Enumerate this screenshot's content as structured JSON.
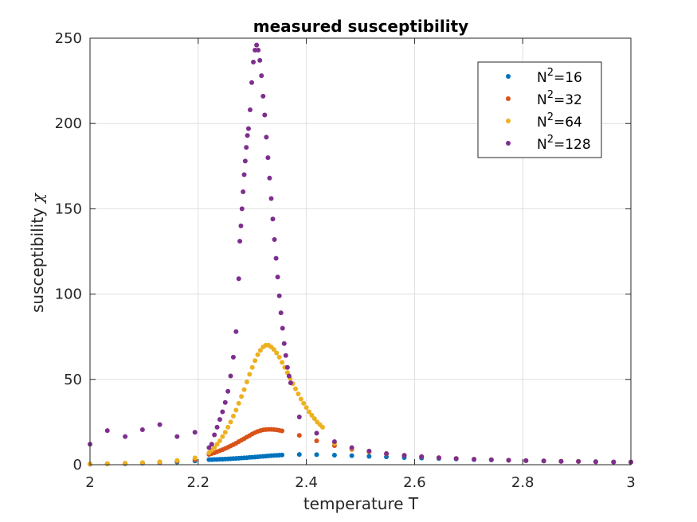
{
  "chart_data": {
    "type": "scatter",
    "title": "measured susceptibility",
    "xlabel": "temperature T",
    "ylabel": "susceptibility",
    "ylabel_symbol": "χ",
    "xlim": [
      2,
      3
    ],
    "ylim": [
      0,
      250
    ],
    "xticks": [
      2,
      2.2,
      2.4,
      2.6,
      2.8,
      3
    ],
    "xtick_labels": [
      "2",
      "2.2",
      "2.4",
      "2.6",
      "2.8",
      "3"
    ],
    "yticks": [
      0,
      50,
      100,
      150,
      200,
      250
    ],
    "ytick_labels": [
      "0",
      "50",
      "100",
      "150",
      "200",
      "250"
    ],
    "grid": true,
    "legend_position": "top-right",
    "series": [
      {
        "name": "N",
        "name_sup": "2",
        "name_suffix": "=16",
        "color": "#0072BD",
        "points": [
          [
            2.0,
            0.3
          ],
          [
            2.032,
            0.5
          ],
          [
            2.065,
            0.6
          ],
          [
            2.097,
            0.9
          ],
          [
            2.129,
            1.2
          ],
          [
            2.161,
            1.6
          ],
          [
            2.194,
            2.2
          ],
          [
            2.22,
            3.0
          ],
          [
            2.225,
            3.0
          ],
          [
            2.23,
            3.1
          ],
          [
            2.235,
            3.1
          ],
          [
            2.24,
            3.2
          ],
          [
            2.245,
            3.2
          ],
          [
            2.25,
            3.3
          ],
          [
            2.255,
            3.4
          ],
          [
            2.26,
            3.5
          ],
          [
            2.265,
            3.6
          ],
          [
            2.27,
            3.7
          ],
          [
            2.275,
            3.8
          ],
          [
            2.28,
            3.9
          ],
          [
            2.285,
            4.0
          ],
          [
            2.29,
            4.1
          ],
          [
            2.295,
            4.3
          ],
          [
            2.3,
            4.4
          ],
          [
            2.305,
            4.5
          ],
          [
            2.31,
            4.6
          ],
          [
            2.315,
            4.8
          ],
          [
            2.32,
            4.9
          ],
          [
            2.325,
            5.0
          ],
          [
            2.33,
            5.2
          ],
          [
            2.335,
            5.3
          ],
          [
            2.34,
            5.4
          ],
          [
            2.345,
            5.5
          ],
          [
            2.35,
            5.6
          ],
          [
            2.355,
            5.7
          ],
          [
            2.387,
            6.0
          ],
          [
            2.419,
            5.9
          ],
          [
            2.452,
            5.6
          ],
          [
            2.484,
            5.3
          ],
          [
            2.516,
            4.9
          ],
          [
            2.548,
            4.6
          ],
          [
            2.581,
            4.2
          ],
          [
            2.613,
            3.9
          ],
          [
            2.645,
            3.6
          ],
          [
            2.677,
            3.3
          ],
          [
            2.71,
            3.0
          ],
          [
            2.742,
            2.8
          ],
          [
            2.774,
            2.6
          ],
          [
            2.806,
            2.4
          ],
          [
            2.839,
            2.2
          ],
          [
            2.871,
            2.0
          ],
          [
            2.903,
            1.9
          ],
          [
            2.935,
            1.8
          ],
          [
            2.968,
            1.6
          ],
          [
            3.0,
            1.5
          ]
        ]
      },
      {
        "name": "N",
        "name_sup": "2",
        "name_suffix": "=32",
        "color": "#D95319",
        "points": [
          [
            2.0,
            0.4
          ],
          [
            2.032,
            0.6
          ],
          [
            2.065,
            0.8
          ],
          [
            2.097,
            1.1
          ],
          [
            2.129,
            1.5
          ],
          [
            2.161,
            2.1
          ],
          [
            2.194,
            3.0
          ],
          [
            2.22,
            6.0
          ],
          [
            2.225,
            6.5
          ],
          [
            2.23,
            7.0
          ],
          [
            2.235,
            7.6
          ],
          [
            2.24,
            8.2
          ],
          [
            2.245,
            8.8
          ],
          [
            2.25,
            9.5
          ],
          [
            2.255,
            10.2
          ],
          [
            2.26,
            11.0
          ],
          [
            2.265,
            11.8
          ],
          [
            2.27,
            12.6
          ],
          [
            2.275,
            13.5
          ],
          [
            2.28,
            14.4
          ],
          [
            2.285,
            15.3
          ],
          [
            2.29,
            16.2
          ],
          [
            2.295,
            17.1
          ],
          [
            2.3,
            18.0
          ],
          [
            2.305,
            18.8
          ],
          [
            2.31,
            19.5
          ],
          [
            2.315,
            20.0
          ],
          [
            2.32,
            20.4
          ],
          [
            2.325,
            20.6
          ],
          [
            2.33,
            20.7
          ],
          [
            2.335,
            20.7
          ],
          [
            2.34,
            20.6
          ],
          [
            2.345,
            20.4
          ],
          [
            2.35,
            20.1
          ],
          [
            2.355,
            19.8
          ],
          [
            2.387,
            17.2
          ],
          [
            2.419,
            14.0
          ],
          [
            2.452,
            11.2
          ],
          [
            2.484,
            9.0
          ],
          [
            2.516,
            7.5
          ],
          [
            2.548,
            6.3
          ],
          [
            2.581,
            5.4
          ],
          [
            2.613,
            4.7
          ],
          [
            2.645,
            4.1
          ],
          [
            2.677,
            3.6
          ],
          [
            2.71,
            3.2
          ],
          [
            2.742,
            2.9
          ],
          [
            2.774,
            2.6
          ],
          [
            2.806,
            2.4
          ],
          [
            2.839,
            2.2
          ],
          [
            2.871,
            2.0
          ],
          [
            2.903,
            1.9
          ],
          [
            2.935,
            1.7
          ],
          [
            2.968,
            1.6
          ],
          [
            3.0,
            1.5
          ]
        ]
      },
      {
        "name": "N",
        "name_sup": "2",
        "name_suffix": "=64",
        "color": "#EDB120",
        "points": [
          [
            2.0,
            0.4
          ],
          [
            2.032,
            0.6
          ],
          [
            2.065,
            0.9
          ],
          [
            2.097,
            1.2
          ],
          [
            2.129,
            1.7
          ],
          [
            2.161,
            2.5
          ],
          [
            2.194,
            4.0
          ],
          [
            2.22,
            7.0
          ],
          [
            2.225,
            8.5
          ],
          [
            2.23,
            10.0
          ],
          [
            2.235,
            12.0
          ],
          [
            2.24,
            14.0
          ],
          [
            2.245,
            16.5
          ],
          [
            2.25,
            19.0
          ],
          [
            2.255,
            22.0
          ],
          [
            2.26,
            25.0
          ],
          [
            2.265,
            28.5
          ],
          [
            2.27,
            32.0
          ],
          [
            2.275,
            36.0
          ],
          [
            2.28,
            40.0
          ],
          [
            2.285,
            44.0
          ],
          [
            2.29,
            48.5
          ],
          [
            2.295,
            53.0
          ],
          [
            2.3,
            57.0
          ],
          [
            2.305,
            61.0
          ],
          [
            2.31,
            64.5
          ],
          [
            2.315,
            67.0
          ],
          [
            2.32,
            69.0
          ],
          [
            2.325,
            70.0
          ],
          [
            2.33,
            70.0
          ],
          [
            2.335,
            69.0
          ],
          [
            2.34,
            67.5
          ],
          [
            2.345,
            65.5
          ],
          [
            2.35,
            63.0
          ],
          [
            2.355,
            60.0
          ],
          [
            2.36,
            57.0
          ],
          [
            2.365,
            54.0
          ],
          [
            2.37,
            50.5
          ],
          [
            2.375,
            47.5
          ],
          [
            2.38,
            44.5
          ],
          [
            2.385,
            41.5
          ],
          [
            2.39,
            38.5
          ],
          [
            2.395,
            36.0
          ],
          [
            2.4,
            33.5
          ],
          [
            2.405,
            31.0
          ],
          [
            2.41,
            29.0
          ],
          [
            2.415,
            27.0
          ],
          [
            2.42,
            25.0
          ],
          [
            2.425,
            23.5
          ],
          [
            2.43,
            22.0
          ],
          [
            2.452,
            12.5
          ],
          [
            2.484,
            9.5
          ],
          [
            2.516,
            7.8
          ],
          [
            2.548,
            6.5
          ],
          [
            2.581,
            5.5
          ],
          [
            2.613,
            4.7
          ],
          [
            2.645,
            4.1
          ],
          [
            2.677,
            3.6
          ],
          [
            2.71,
            3.2
          ],
          [
            2.742,
            2.9
          ],
          [
            2.774,
            2.6
          ],
          [
            2.806,
            2.4
          ],
          [
            2.839,
            2.2
          ],
          [
            2.871,
            2.0
          ],
          [
            2.903,
            1.9
          ],
          [
            2.935,
            1.7
          ],
          [
            2.968,
            1.6
          ],
          [
            3.0,
            1.5
          ]
        ]
      },
      {
        "name": "N",
        "name_sup": "2",
        "name_suffix": "=128",
        "color": "#7E2F8E",
        "points": [
          [
            2.0,
            12.0
          ],
          [
            2.032,
            20.0
          ],
          [
            2.065,
            16.5
          ],
          [
            2.097,
            20.5
          ],
          [
            2.129,
            23.5
          ],
          [
            2.161,
            16.5
          ],
          [
            2.194,
            19.0
          ],
          [
            2.22,
            10.0
          ],
          [
            2.225,
            12.0
          ],
          [
            2.23,
            17.5
          ],
          [
            2.235,
            22.0
          ],
          [
            2.24,
            26.5
          ],
          [
            2.245,
            31.0
          ],
          [
            2.25,
            36.5
          ],
          [
            2.255,
            43.0
          ],
          [
            2.26,
            52.0
          ],
          [
            2.265,
            63.0
          ],
          [
            2.27,
            78.0
          ],
          [
            2.275,
            109.0
          ],
          [
            2.277,
            131.0
          ],
          [
            2.279,
            140.0
          ],
          [
            2.281,
            150.0
          ],
          [
            2.283,
            160.0
          ],
          [
            2.285,
            170.0
          ],
          [
            2.287,
            178.0
          ],
          [
            2.289,
            186.0
          ],
          [
            2.291,
            193.0
          ],
          [
            2.293,
            197.0
          ],
          [
            2.296,
            208.0
          ],
          [
            2.299,
            224.0
          ],
          [
            2.302,
            236.0
          ],
          [
            2.305,
            243.0
          ],
          [
            2.308,
            246.0
          ],
          [
            2.311,
            243.0
          ],
          [
            2.314,
            237.0
          ],
          [
            2.317,
            228.0
          ],
          [
            2.32,
            216.0
          ],
          [
            2.323,
            205.0
          ],
          [
            2.326,
            192.0
          ],
          [
            2.329,
            180.0
          ],
          [
            2.332,
            168.0
          ],
          [
            2.335,
            156.0
          ],
          [
            2.338,
            144.0
          ],
          [
            2.341,
            132.0
          ],
          [
            2.344,
            121.0
          ],
          [
            2.347,
            110.0
          ],
          [
            2.35,
            99.0
          ],
          [
            2.353,
            89.0
          ],
          [
            2.356,
            80.0
          ],
          [
            2.359,
            71.0
          ],
          [
            2.362,
            64.0
          ],
          [
            2.365,
            57.0
          ],
          [
            2.368,
            52.0
          ],
          [
            2.371,
            48.0
          ],
          [
            2.387,
            28.0
          ],
          [
            2.419,
            18.5
          ],
          [
            2.452,
            13.5
          ],
          [
            2.484,
            10.0
          ],
          [
            2.516,
            8.0
          ],
          [
            2.548,
            6.5
          ],
          [
            2.581,
            5.5
          ],
          [
            2.613,
            4.7
          ],
          [
            2.645,
            4.1
          ],
          [
            2.677,
            3.6
          ],
          [
            2.71,
            3.2
          ],
          [
            2.742,
            2.9
          ],
          [
            2.774,
            2.6
          ],
          [
            2.806,
            2.4
          ],
          [
            2.839,
            2.2
          ],
          [
            2.871,
            2.0
          ],
          [
            2.903,
            1.9
          ],
          [
            2.935,
            1.7
          ],
          [
            2.968,
            1.6
          ],
          [
            3.0,
            1.5
          ]
        ]
      }
    ]
  }
}
